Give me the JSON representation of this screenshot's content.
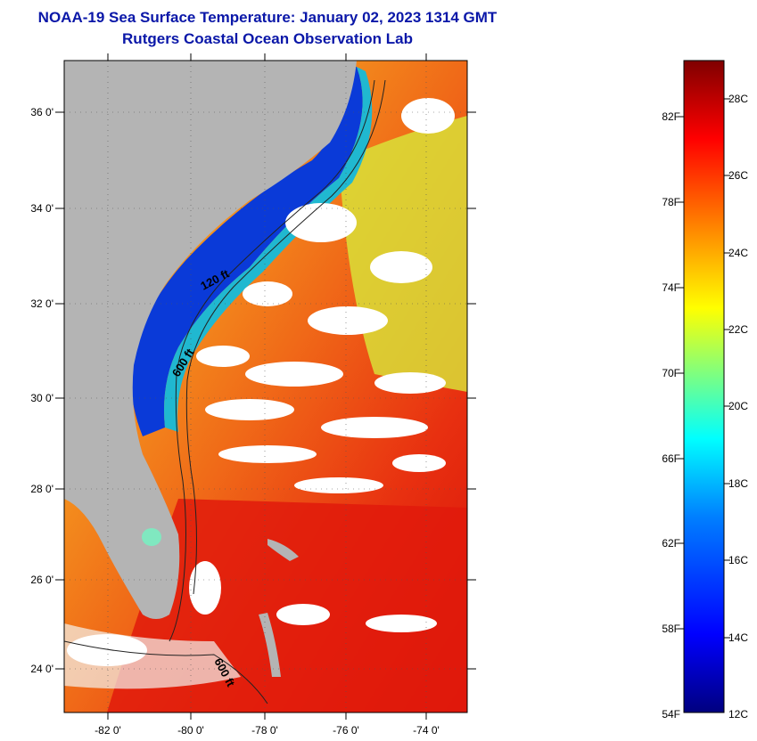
{
  "title": "NOAA-19 Sea Surface Temperature:  January 02, 2023 1314 GMT",
  "subtitle": "Rutgers Coastal Ocean Observation Lab",
  "lat_labels": [
    "36 0'",
    "34 0'",
    "32 0'",
    "30 0'",
    "28 0'",
    "26 0'",
    "24 0'"
  ],
  "lon_labels": [
    "-82 0'",
    "-80 0'",
    "-78 0'",
    "-76 0'",
    "-74 0'"
  ],
  "isobath_labels": [
    "120 ft",
    "600 ft",
    "600 ft"
  ],
  "colorbar": {
    "fahrenheit_labels": [
      "82F",
      "78F",
      "74F",
      "70F",
      "66F",
      "62F",
      "58F",
      "54F"
    ],
    "celsius_labels": [
      "28C",
      "26C",
      "24C",
      "22C",
      "20C",
      "18C",
      "16C",
      "14C",
      "12C"
    ],
    "colors": [
      "#00007f",
      "#0000ff",
      "#007fff",
      "#00ffff",
      "#7fff7f",
      "#ffff00",
      "#ff7f00",
      "#ff0000",
      "#7f0000"
    ]
  },
  "colors": {
    "land": "#b4b4b4",
    "cloud": "#ffffff",
    "title": "#0a17a8"
  }
}
